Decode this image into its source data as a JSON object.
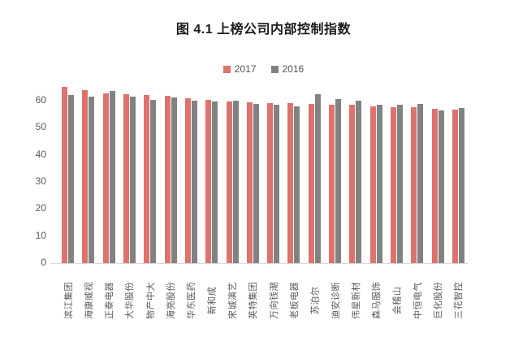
{
  "title": "图 4.1 上榜公司内部控制指数",
  "legend": [
    {
      "label": "2017",
      "color": "#dd736c"
    },
    {
      "label": "2016",
      "color": "#828282"
    }
  ],
  "colors": {
    "series_2017": "#dd736c",
    "series_2016": "#828282",
    "axis_line": "#d9d9d9",
    "tick_text": "#595959",
    "title_text": "#1a1a1a"
  },
  "y_axis": {
    "ticks": [
      0,
      10,
      20,
      30,
      40,
      50,
      60
    ]
  },
  "chart_data": {
    "type": "bar",
    "title": "图 4.1 上榜公司内部控制指数",
    "categories": [
      "滨江集团",
      "海康威视",
      "正泰电器",
      "大华股份",
      "物产中大",
      "海亮股份",
      "华东医药",
      "新和成",
      "宋城演艺",
      "英特集团",
      "万向钱潮",
      "老板电器",
      "苏泊尔",
      "迪安诊断",
      "伟星新材",
      "森马服饰",
      "会稽山",
      "中恒电气",
      "巨化股份",
      "三花智控"
    ],
    "series": [
      {
        "name": "2017",
        "values": [
          65.2,
          63.8,
          62.7,
          62.4,
          62.1,
          61.7,
          61.0,
          60.3,
          59.8,
          59.5,
          59.2,
          59.0,
          58.7,
          58.6,
          58.4,
          58.0,
          57.7,
          57.5,
          57.0,
          56.6
        ]
      },
      {
        "name": "2016",
        "values": [
          62.2,
          61.6,
          63.5,
          61.4,
          60.4,
          61.1,
          60.0,
          59.8,
          60.1,
          58.8,
          58.4,
          57.8,
          62.3,
          60.6,
          60.1,
          58.5,
          58.4,
          58.7,
          56.4,
          57.2
        ]
      }
    ],
    "xlabel": "",
    "ylabel": "",
    "ylim": [
      0,
      60
    ],
    "y_tick_step": 10,
    "grid": false,
    "legend_position": "top",
    "x_label_rotation": -90
  }
}
